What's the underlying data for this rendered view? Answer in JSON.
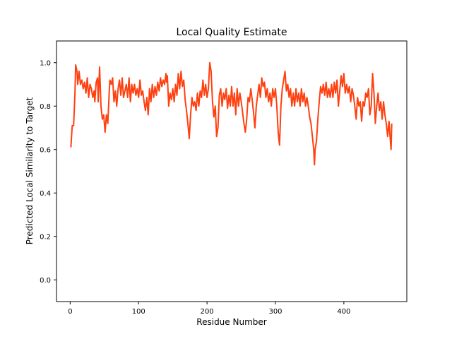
{
  "chart_data": {
    "type": "line",
    "title": "Local Quality Estimate",
    "xlabel": "Residue Number",
    "ylabel": "Predicted Local Similarity to Target",
    "xlim": [
      -20,
      492
    ],
    "ylim": [
      -0.1,
      1.1
    ],
    "xticks": [
      0,
      100,
      200,
      300,
      400
    ],
    "yticks": [
      0.0,
      0.2,
      0.4,
      0.6,
      0.8,
      1.0
    ],
    "grid": false,
    "line_color": "#ff4010",
    "series": [
      {
        "points": [
          [
            1,
            0.61
          ],
          [
            3,
            0.71
          ],
          [
            5,
            0.71
          ],
          [
            7,
            0.86
          ],
          [
            8,
            0.99
          ],
          [
            10,
            0.96
          ],
          [
            11,
            0.9
          ],
          [
            13,
            0.96
          ],
          [
            15,
            0.9
          ],
          [
            17,
            0.92
          ],
          [
            19,
            0.88
          ],
          [
            21,
            0.91
          ],
          [
            23,
            0.86
          ],
          [
            25,
            0.93
          ],
          [
            27,
            0.84
          ],
          [
            29,
            0.9
          ],
          [
            31,
            0.88
          ],
          [
            33,
            0.84
          ],
          [
            35,
            0.87
          ],
          [
            36,
            0.82
          ],
          [
            38,
            0.91
          ],
          [
            40,
            0.93
          ],
          [
            41,
            0.82
          ],
          [
            43,
            0.98
          ],
          [
            45,
            0.8
          ],
          [
            47,
            0.74
          ],
          [
            49,
            0.76
          ],
          [
            51,
            0.68
          ],
          [
            53,
            0.76
          ],
          [
            55,
            0.72
          ],
          [
            57,
            0.86
          ],
          [
            58,
            0.92
          ],
          [
            60,
            0.9
          ],
          [
            62,
            0.93
          ],
          [
            64,
            0.82
          ],
          [
            66,
            0.87
          ],
          [
            68,
            0.8
          ],
          [
            70,
            0.88
          ],
          [
            72,
            0.92
          ],
          [
            74,
            0.85
          ],
          [
            76,
            0.93
          ],
          [
            78,
            0.84
          ],
          [
            80,
            0.87
          ],
          [
            82,
            0.9
          ],
          [
            84,
            0.84
          ],
          [
            86,
            0.93
          ],
          [
            88,
            0.82
          ],
          [
            90,
            0.9
          ],
          [
            92,
            0.86
          ],
          [
            94,
            0.9
          ],
          [
            96,
            0.85
          ],
          [
            98,
            0.88
          ],
          [
            100,
            0.84
          ],
          [
            102,
            0.92
          ],
          [
            104,
            0.85
          ],
          [
            106,
            0.87
          ],
          [
            108,
            0.82
          ],
          [
            110,
            0.78
          ],
          [
            112,
            0.84
          ],
          [
            114,
            0.76
          ],
          [
            116,
            0.88
          ],
          [
            118,
            0.82
          ],
          [
            120,
            0.9
          ],
          [
            122,
            0.84
          ],
          [
            124,
            0.89
          ],
          [
            126,
            0.85
          ],
          [
            128,
            0.91
          ],
          [
            130,
            0.87
          ],
          [
            132,
            0.93
          ],
          [
            134,
            0.89
          ],
          [
            136,
            0.92
          ],
          [
            138,
            0.9
          ],
          [
            140,
            0.95
          ],
          [
            141,
            0.91
          ],
          [
            142,
            0.94
          ],
          [
            144,
            0.8
          ],
          [
            146,
            0.86
          ],
          [
            148,
            0.83
          ],
          [
            150,
            0.88
          ],
          [
            152,
            0.82
          ],
          [
            154,
            0.9
          ],
          [
            156,
            0.85
          ],
          [
            158,
            0.95
          ],
          [
            160,
            0.88
          ],
          [
            162,
            0.96
          ],
          [
            164,
            0.89
          ],
          [
            166,
            0.92
          ],
          [
            168,
            0.83
          ],
          [
            170,
            0.78
          ],
          [
            172,
            0.72
          ],
          [
            174,
            0.65
          ],
          [
            176,
            0.76
          ],
          [
            178,
            0.84
          ],
          [
            180,
            0.8
          ],
          [
            182,
            0.82
          ],
          [
            184,
            0.78
          ],
          [
            186,
            0.86
          ],
          [
            188,
            0.8
          ],
          [
            190,
            0.87
          ],
          [
            192,
            0.84
          ],
          [
            194,
            0.92
          ],
          [
            196,
            0.85
          ],
          [
            198,
            0.9
          ],
          [
            200,
            0.84
          ],
          [
            202,
            0.88
          ],
          [
            204,
            1.0
          ],
          [
            206,
            0.96
          ],
          [
            208,
            0.82
          ],
          [
            210,
            0.75
          ],
          [
            212,
            0.8
          ],
          [
            214,
            0.66
          ],
          [
            216,
            0.7
          ],
          [
            218,
            0.85
          ],
          [
            220,
            0.88
          ],
          [
            222,
            0.8
          ],
          [
            224,
            0.86
          ],
          [
            226,
            0.83
          ],
          [
            228,
            0.88
          ],
          [
            230,
            0.79
          ],
          [
            232,
            0.85
          ],
          [
            234,
            0.8
          ],
          [
            236,
            0.89
          ],
          [
            238,
            0.8
          ],
          [
            240,
            0.86
          ],
          [
            242,
            0.76
          ],
          [
            244,
            0.88
          ],
          [
            246,
            0.8
          ],
          [
            248,
            0.86
          ],
          [
            250,
            0.82
          ],
          [
            252,
            0.77
          ],
          [
            254,
            0.72
          ],
          [
            256,
            0.68
          ],
          [
            258,
            0.74
          ],
          [
            260,
            0.84
          ],
          [
            262,
            0.82
          ],
          [
            264,
            0.88
          ],
          [
            266,
            0.83
          ],
          [
            268,
            0.77
          ],
          [
            270,
            0.7
          ],
          [
            272,
            0.8
          ],
          [
            274,
            0.85
          ],
          [
            276,
            0.9
          ],
          [
            278,
            0.84
          ],
          [
            280,
            0.93
          ],
          [
            282,
            0.89
          ],
          [
            284,
            0.91
          ],
          [
            286,
            0.84
          ],
          [
            288,
            0.88
          ],
          [
            290,
            0.82
          ],
          [
            292,
            0.86
          ],
          [
            294,
            0.8
          ],
          [
            296,
            0.88
          ],
          [
            298,
            0.84
          ],
          [
            300,
            0.88
          ],
          [
            302,
            0.8
          ],
          [
            304,
            0.68
          ],
          [
            306,
            0.62
          ],
          [
            308,
            0.8
          ],
          [
            310,
            0.88
          ],
          [
            312,
            0.92
          ],
          [
            314,
            0.96
          ],
          [
            316,
            0.87
          ],
          [
            318,
            0.9
          ],
          [
            320,
            0.84
          ],
          [
            322,
            0.88
          ],
          [
            324,
            0.8
          ],
          [
            326,
            0.86
          ],
          [
            328,
            0.8
          ],
          [
            330,
            0.88
          ],
          [
            332,
            0.82
          ],
          [
            334,
            0.86
          ],
          [
            336,
            0.8
          ],
          [
            338,
            0.88
          ],
          [
            340,
            0.82
          ],
          [
            342,
            0.86
          ],
          [
            344,
            0.8
          ],
          [
            346,
            0.84
          ],
          [
            348,
            0.8
          ],
          [
            350,
            0.75
          ],
          [
            352,
            0.72
          ],
          [
            354,
            0.66
          ],
          [
            356,
            0.6
          ],
          [
            357,
            0.53
          ],
          [
            358,
            0.6
          ],
          [
            360,
            0.64
          ],
          [
            362,
            0.74
          ],
          [
            364,
            0.82
          ],
          [
            366,
            0.89
          ],
          [
            368,
            0.86
          ],
          [
            370,
            0.9
          ],
          [
            372,
            0.85
          ],
          [
            374,
            0.91
          ],
          [
            376,
            0.84
          ],
          [
            378,
            0.88
          ],
          [
            380,
            0.84
          ],
          [
            382,
            0.9
          ],
          [
            384,
            0.84
          ],
          [
            386,
            0.91
          ],
          [
            388,
            0.86
          ],
          [
            390,
            0.92
          ],
          [
            392,
            0.8
          ],
          [
            394,
            0.87
          ],
          [
            396,
            0.94
          ],
          [
            398,
            0.89
          ],
          [
            400,
            0.95
          ],
          [
            402,
            0.86
          ],
          [
            404,
            0.9
          ],
          [
            406,
            0.86
          ],
          [
            408,
            0.89
          ],
          [
            410,
            0.82
          ],
          [
            412,
            0.88
          ],
          [
            414,
            0.85
          ],
          [
            416,
            0.8
          ],
          [
            418,
            0.74
          ],
          [
            420,
            0.84
          ],
          [
            422,
            0.8
          ],
          [
            424,
            0.82
          ],
          [
            426,
            0.73
          ],
          [
            428,
            0.82
          ],
          [
            430,
            0.8
          ],
          [
            432,
            0.86
          ],
          [
            434,
            0.84
          ],
          [
            436,
            0.88
          ],
          [
            438,
            0.76
          ],
          [
            440,
            0.8
          ],
          [
            442,
            0.95
          ],
          [
            444,
            0.86
          ],
          [
            446,
            0.72
          ],
          [
            448,
            0.8
          ],
          [
            450,
            0.86
          ],
          [
            452,
            0.78
          ],
          [
            454,
            0.82
          ],
          [
            456,
            0.74
          ],
          [
            458,
            0.82
          ],
          [
            460,
            0.76
          ],
          [
            462,
            0.72
          ],
          [
            464,
            0.66
          ],
          [
            466,
            0.73
          ],
          [
            468,
            0.64
          ],
          [
            469,
            0.6
          ],
          [
            470,
            0.72
          ]
        ]
      }
    ]
  }
}
